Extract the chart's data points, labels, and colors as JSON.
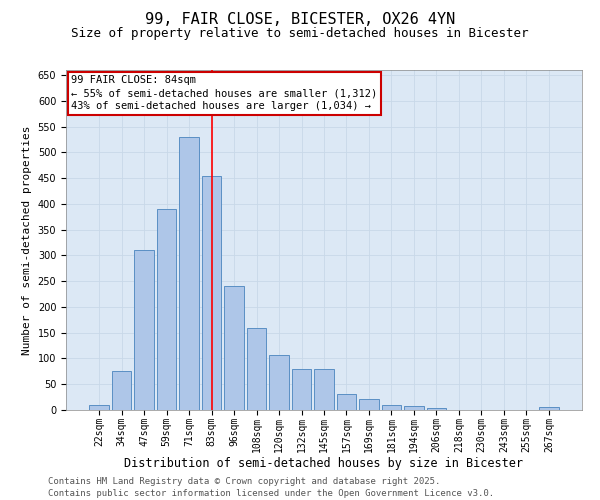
{
  "title": "99, FAIR CLOSE, BICESTER, OX26 4YN",
  "subtitle": "Size of property relative to semi-detached houses in Bicester",
  "xlabel": "Distribution of semi-detached houses by size in Bicester",
  "ylabel": "Number of semi-detached properties",
  "bar_labels": [
    "22sqm",
    "34sqm",
    "47sqm",
    "59sqm",
    "71sqm",
    "83sqm",
    "96sqm",
    "108sqm",
    "120sqm",
    "132sqm",
    "145sqm",
    "157sqm",
    "169sqm",
    "181sqm",
    "194sqm",
    "206sqm",
    "218sqm",
    "230sqm",
    "243sqm",
    "255sqm",
    "267sqm"
  ],
  "bar_values": [
    10,
    76,
    310,
    390,
    530,
    455,
    240,
    160,
    107,
    80,
    80,
    32,
    21,
    10,
    8,
    4,
    0,
    0,
    0,
    0,
    5
  ],
  "bar_color": "#aec6e8",
  "bar_edge_color": "#5a8fc4",
  "annotation_title": "99 FAIR CLOSE: 84sqm",
  "annotation_line1": "← 55% of semi-detached houses are smaller (1,312)",
  "annotation_line2": "43% of semi-detached houses are larger (1,034) →",
  "annotation_box_color": "#cc0000",
  "property_line_index": 5.0,
  "ylim": [
    0,
    660
  ],
  "yticks": [
    0,
    50,
    100,
    150,
    200,
    250,
    300,
    350,
    400,
    450,
    500,
    550,
    600,
    650
  ],
  "grid_color": "#c8d8e8",
  "background_color": "#dce8f5",
  "footer_line1": "Contains HM Land Registry data © Crown copyright and database right 2025.",
  "footer_line2": "Contains public sector information licensed under the Open Government Licence v3.0.",
  "title_fontsize": 11,
  "subtitle_fontsize": 9,
  "xlabel_fontsize": 8.5,
  "ylabel_fontsize": 8,
  "tick_fontsize": 7,
  "annotation_fontsize": 7.5,
  "footer_fontsize": 6.5
}
